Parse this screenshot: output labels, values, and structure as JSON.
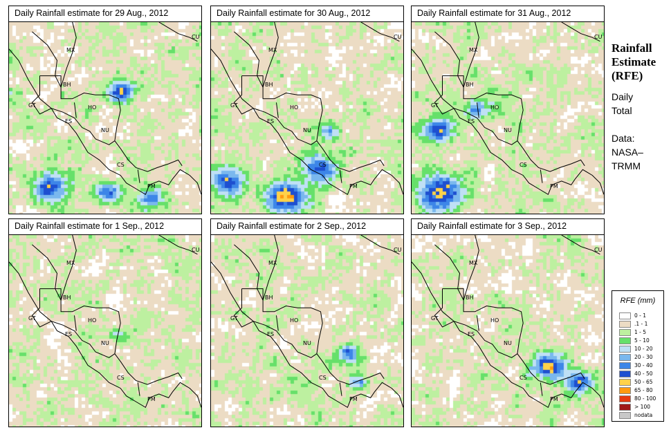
{
  "side": {
    "title_lines": [
      "Rainfall",
      "Estimate",
      "(RFE)"
    ],
    "daily_lines": [
      "Daily",
      "Total"
    ],
    "source_lines": [
      "Data:",
      "NASA–",
      "TRMM"
    ]
  },
  "legend": {
    "title": "RFE (mm)",
    "items": [
      {
        "label": "0 - 1",
        "color": "#ffffff"
      },
      {
        "label": ".1 - 1",
        "color": "#ecdcc4"
      },
      {
        "label": "1 - 5",
        "color": "#bdf0a0"
      },
      {
        "label": "5 - 10",
        "color": "#66e06a"
      },
      {
        "label": "10 - 20",
        "color": "#bfe0f5"
      },
      {
        "label": "20 - 30",
        "color": "#7ab8ee"
      },
      {
        "label": "30 - 40",
        "color": "#3d86e8"
      },
      {
        "label": "40 - 50",
        "color": "#1e4fd0"
      },
      {
        "label": "50 - 65",
        "color": "#ffd24a"
      },
      {
        "label": "65 - 80",
        "color": "#ff9a10"
      },
      {
        "label": "80 - 100",
        "color": "#e63a10"
      },
      {
        "label": "> 100",
        "color": "#a01818"
      },
      {
        "label": "nodata",
        "color": "#c8c8c8"
      }
    ]
  },
  "country_labels": [
    "MX",
    "BH",
    "GT",
    "HO",
    "ES",
    "NU",
    "CS",
    "PM",
    "CU"
  ],
  "panels": [
    {
      "title": "Daily Rainfall estimate for  29 Aug., 2012",
      "seed": 11,
      "hotspots": [
        [
          0.57,
          0.35,
          0.05,
          7
        ],
        [
          0.2,
          0.85,
          0.07,
          6
        ],
        [
          0.5,
          0.87,
          0.05,
          5
        ],
        [
          0.72,
          0.9,
          0.05,
          4
        ]
      ]
    },
    {
      "title": "Daily Rainfall estimate for  30 Aug., 2012",
      "seed": 23,
      "hotspots": [
        [
          0.55,
          0.75,
          0.06,
          7
        ],
        [
          0.38,
          0.9,
          0.07,
          7
        ],
        [
          0.08,
          0.82,
          0.06,
          6
        ],
        [
          0.6,
          0.55,
          0.04,
          4
        ]
      ]
    },
    {
      "title": "Daily Rainfall estimate for  31 Aug., 2012",
      "seed": 37,
      "hotspots": [
        [
          0.15,
          0.88,
          0.08,
          7
        ],
        [
          0.12,
          0.55,
          0.06,
          6
        ],
        [
          0.33,
          0.45,
          0.05,
          4
        ]
      ]
    },
    {
      "title": "Daily Rainfall estimate for  1 Sep., 2012",
      "seed": 41,
      "hotspots": [
        [
          0.55,
          0.5,
          0.03,
          3
        ]
      ]
    },
    {
      "title": "Daily Rainfall estimate for  2 Sep., 2012",
      "seed": 53,
      "hotspots": [
        [
          0.7,
          0.6,
          0.04,
          5
        ],
        [
          0.75,
          0.75,
          0.03,
          4
        ]
      ]
    },
    {
      "title": "Daily Rainfall estimate for  3 Sep., 2012",
      "seed": 67,
      "hotspots": [
        [
          0.7,
          0.67,
          0.06,
          7
        ],
        [
          0.85,
          0.75,
          0.05,
          6
        ]
      ]
    }
  ]
}
